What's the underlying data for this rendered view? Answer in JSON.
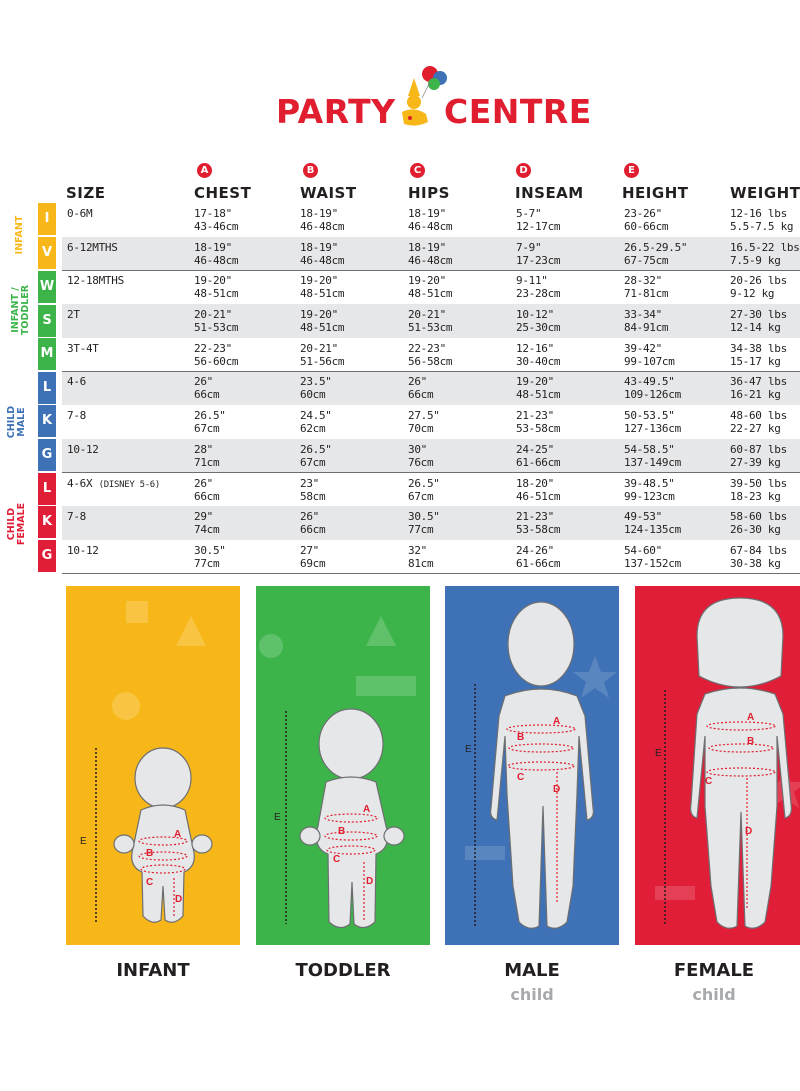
{
  "brand": {
    "left": "PARTY",
    "right": "CENTRE"
  },
  "columns": [
    {
      "letter": "",
      "label": "SIZE"
    },
    {
      "letter": "A",
      "label": "CHEST"
    },
    {
      "letter": "B",
      "label": "WAIST"
    },
    {
      "letter": "C",
      "label": "HIPS"
    },
    {
      "letter": "D",
      "label": "INSEAM"
    },
    {
      "letter": "E",
      "label": "HEIGHT"
    },
    {
      "letter": "",
      "label": "WEIGHT"
    }
  ],
  "groups": [
    {
      "label": "INFANT",
      "color": "#f7b718"
    },
    {
      "label": "INFANT / TODDLER",
      "color": "#3db44a"
    },
    {
      "label": "CHILD MALE",
      "color": "#3e71b6"
    },
    {
      "label": "CHILD FEMALE",
      "color": "#e01e38"
    }
  ],
  "size_letters": [
    {
      "letter": "I",
      "color": "#f7b718"
    },
    {
      "letter": "V",
      "color": "#f7b718"
    },
    {
      "letter": "W",
      "color": "#3db44a"
    },
    {
      "letter": "S",
      "color": "#3db44a"
    },
    {
      "letter": "M",
      "color": "#3db44a"
    },
    {
      "letter": "L",
      "color": "#3e71b6"
    },
    {
      "letter": "K",
      "color": "#3e71b6"
    },
    {
      "letter": "G",
      "color": "#3e71b6"
    },
    {
      "letter": "L",
      "color": "#e01e38"
    },
    {
      "letter": "K",
      "color": "#e01e38"
    },
    {
      "letter": "G",
      "color": "#e01e38"
    }
  ],
  "rows": [
    {
      "size": "0-6M",
      "chest": [
        "17-18\"",
        "43-46cm"
      ],
      "waist": [
        "18-19\"",
        "46-48cm"
      ],
      "hips": [
        "18-19\"",
        "46-48cm"
      ],
      "inseam": [
        "5-7\"",
        "12-17cm"
      ],
      "height": [
        "23-26\"",
        "60-66cm"
      ],
      "weight": [
        "12-16 lbs",
        "5.5-7.5 kg"
      ]
    },
    {
      "size": "6-12MTHS",
      "chest": [
        "18-19\"",
        "46-48cm"
      ],
      "waist": [
        "18-19\"",
        "46-48cm"
      ],
      "hips": [
        "18-19\"",
        "46-48cm"
      ],
      "inseam": [
        "7-9\"",
        "17-23cm"
      ],
      "height": [
        "26.5-29.5\"",
        "67-75cm"
      ],
      "weight": [
        "16.5-22 lbs",
        "7.5-9 kg"
      ]
    },
    {
      "size": "12-18MTHS",
      "chest": [
        "19-20\"",
        "48-51cm"
      ],
      "waist": [
        "19-20\"",
        "48-51cm"
      ],
      "hips": [
        "19-20\"",
        "48-51cm"
      ],
      "inseam": [
        "9-11\"",
        "23-28cm"
      ],
      "height": [
        "28-32\"",
        "71-81cm"
      ],
      "weight": [
        "20-26 lbs",
        "9-12 kg"
      ]
    },
    {
      "size": "2T",
      "chest": [
        "20-21\"",
        "51-53cm"
      ],
      "waist": [
        "19-20\"",
        "48-51cm"
      ],
      "hips": [
        "20-21\"",
        "51-53cm"
      ],
      "inseam": [
        "10-12\"",
        "25-30cm"
      ],
      "height": [
        "33-34\"",
        "84-91cm"
      ],
      "weight": [
        "27-30 lbs",
        "12-14 kg"
      ]
    },
    {
      "size": "3T-4T",
      "chest": [
        "22-23\"",
        "56-60cm"
      ],
      "waist": [
        "20-21\"",
        "51-56cm"
      ],
      "hips": [
        "22-23\"",
        "56-58cm"
      ],
      "inseam": [
        "12-16\"",
        "30-40cm"
      ],
      "height": [
        "39-42\"",
        "99-107cm"
      ],
      "weight": [
        "34-38 lbs",
        "15-17 kg"
      ]
    },
    {
      "size": "4-6",
      "chest": [
        "26\"",
        "66cm"
      ],
      "waist": [
        "23.5\"",
        "60cm"
      ],
      "hips": [
        "26\"",
        "66cm"
      ],
      "inseam": [
        "19-20\"",
        "48-51cm"
      ],
      "height": [
        "43-49.5\"",
        "109-126cm"
      ],
      "weight": [
        "36-47 lbs",
        "16-21 kg"
      ]
    },
    {
      "size": "7-8",
      "chest": [
        "26.5\"",
        "67cm"
      ],
      "waist": [
        "24.5\"",
        "62cm"
      ],
      "hips": [
        "27.5\"",
        "70cm"
      ],
      "inseam": [
        "21-23\"",
        "53-58cm"
      ],
      "height": [
        "50-53.5\"",
        "127-136cm"
      ],
      "weight": [
        "48-60 lbs",
        "22-27 kg"
      ]
    },
    {
      "size": "10-12",
      "chest": [
        "28\"",
        "71cm"
      ],
      "waist": [
        "26.5\"",
        "67cm"
      ],
      "hips": [
        "30\"",
        "76cm"
      ],
      "inseam": [
        "24-25\"",
        "61-66cm"
      ],
      "height": [
        "54-58.5\"",
        "137-149cm"
      ],
      "weight": [
        "60-87 lbs",
        "27-39 kg"
      ]
    },
    {
      "size": "4-6X",
      "size_note": "(DISNEY 5-6)",
      "chest": [
        "26\"",
        "66cm"
      ],
      "waist": [
        "23\"",
        "58cm"
      ],
      "hips": [
        "26.5\"",
        "67cm"
      ],
      "inseam": [
        "18-20\"",
        "46-51cm"
      ],
      "height": [
        "39-48.5\"",
        "99-123cm"
      ],
      "weight": [
        "39-50 lbs",
        "18-23 kg"
      ]
    },
    {
      "size": "7-8",
      "chest": [
        "29\"",
        "74cm"
      ],
      "waist": [
        "26\"",
        "66cm"
      ],
      "hips": [
        "30.5\"",
        "77cm"
      ],
      "inseam": [
        "21-23\"",
        "53-58cm"
      ],
      "height": [
        "49-53\"",
        "124-135cm"
      ],
      "weight": [
        "58-60 lbs",
        "26-30 kg"
      ]
    },
    {
      "size": "10-12",
      "chest": [
        "30.5\"",
        "77cm"
      ],
      "waist": [
        "27\"",
        "69cm"
      ],
      "hips": [
        "32\"",
        "81cm"
      ],
      "inseam": [
        "24-26\"",
        "61-66cm"
      ],
      "height": [
        "54-60\"",
        "137-152cm"
      ],
      "weight": [
        "67-84 lbs",
        "30-38 kg"
      ]
    }
  ],
  "figures": [
    {
      "title": "INFANT",
      "subtitle": "",
      "color": "#f7b718"
    },
    {
      "title": "TODDLER",
      "subtitle": "",
      "color": "#3db44a"
    },
    {
      "title": "MALE",
      "subtitle": "child",
      "color": "#3e71b6"
    },
    {
      "title": "FEMALE",
      "subtitle": "child",
      "color": "#e01e38"
    }
  ],
  "figure_markers": {
    "a": "A",
    "b": "B",
    "c": "C",
    "d": "D",
    "e": "E"
  }
}
